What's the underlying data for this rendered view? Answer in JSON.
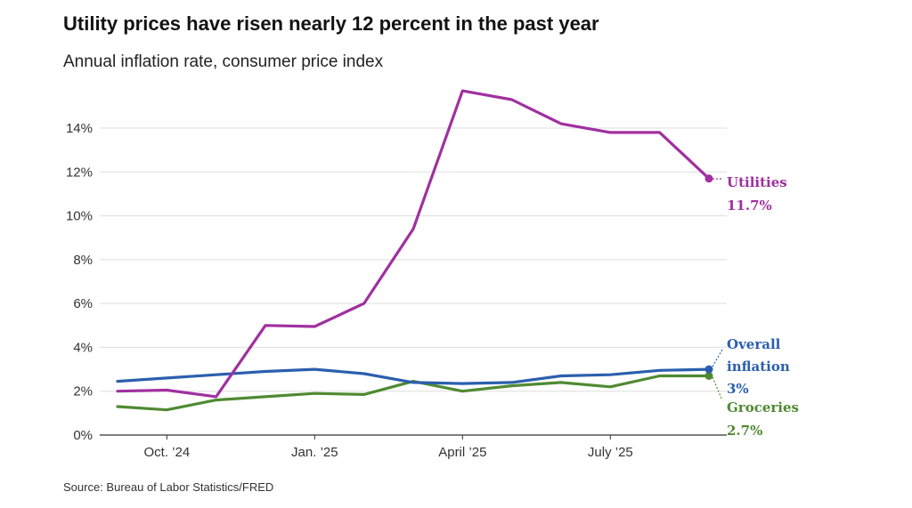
{
  "title": "Utility prices have risen nearly 12 percent in the past year",
  "subtitle": "Annual inflation rate, consumer price index",
  "source": "Source: Bureau of Labor Statistics/FRED",
  "colors": {
    "utilities": "#a0309f",
    "overall": "#2b5fad",
    "groceries": "#4f8a32",
    "grid": "#dddddd",
    "axis": "#333333"
  },
  "chart_data": {
    "type": "line",
    "x": [
      "2024-09",
      "2024-10",
      "2024-11",
      "2024-12",
      "2025-01",
      "2025-02",
      "2025-03",
      "2025-04",
      "2025-05",
      "2025-06",
      "2025-07",
      "2025-08",
      "2025-09"
    ],
    "x_tick_labels": [
      "Oct. ’24",
      "Jan. ’25",
      "April ’25",
      "July ’25"
    ],
    "x_tick_positions": [
      "2024-10",
      "2025-01",
      "2025-04",
      "2025-07"
    ],
    "y_tick_labels": [
      "0%",
      "2%",
      "4%",
      "6%",
      "8%",
      "10%",
      "12%",
      "14%"
    ],
    "y_ticks": [
      0,
      2,
      4,
      6,
      8,
      10,
      12,
      14
    ],
    "ylim": [
      0,
      16
    ],
    "grid": true,
    "series": [
      {
        "key": "utilities",
        "label_lines": [
          "Utilities",
          "11.7%"
        ],
        "values": [
          2.0,
          2.05,
          1.75,
          5.0,
          4.95,
          6.0,
          9.4,
          15.7,
          15.3,
          14.2,
          13.8,
          13.8,
          11.7
        ]
      },
      {
        "key": "overall",
        "label_lines": [
          "Overall",
          "inflation",
          "3%"
        ],
        "values": [
          2.45,
          2.6,
          2.75,
          2.9,
          3.0,
          2.8,
          2.4,
          2.35,
          2.4,
          2.7,
          2.75,
          2.95,
          3.0
        ]
      },
      {
        "key": "groceries",
        "label_lines": [
          "Groceries",
          "2.7%"
        ],
        "values": [
          1.3,
          1.15,
          1.6,
          1.75,
          1.9,
          1.85,
          2.45,
          2.0,
          2.25,
          2.4,
          2.2,
          2.7,
          2.7
        ]
      }
    ]
  }
}
